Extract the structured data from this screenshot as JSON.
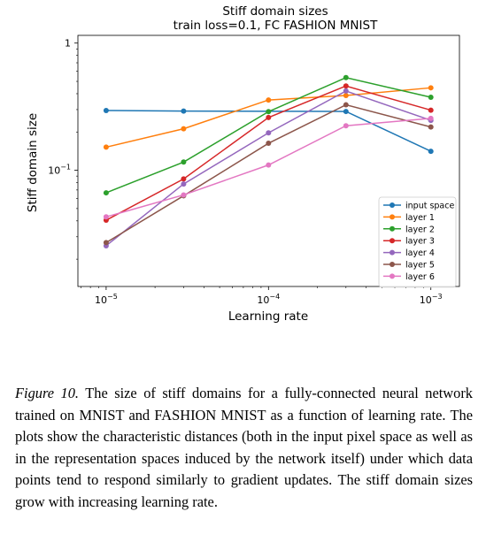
{
  "chart_data": {
    "type": "line",
    "title": "Stiff domain sizes",
    "subtitle": "train loss=0.1, FC FASHION MNIST",
    "xlabel": "Learning rate",
    "ylabel": "Stiff domain size",
    "xscale": "log",
    "yscale": "log",
    "xlim": [
      6.7e-06,
      0.0015
    ],
    "ylim": [
      0.0122,
      1.15
    ],
    "x_ticks": [
      {
        "value": 1e-05,
        "base": "10",
        "exp": "−5"
      },
      {
        "value": 0.0001,
        "base": "10",
        "exp": "−4"
      },
      {
        "value": 0.001,
        "base": "10",
        "exp": "−3"
      }
    ],
    "y_ticks": [
      {
        "value": 1,
        "label": "1"
      },
      {
        "value": 0.1,
        "base": "10",
        "exp": "−1"
      }
    ],
    "legend_position": "lower right",
    "grid": false,
    "x": [
      1e-05,
      3e-05,
      0.0001,
      0.0003,
      0.001
    ],
    "series": [
      {
        "name": "input space",
        "color": "#1f77b4",
        "values": [
          0.295,
          0.292,
          null,
          0.29,
          0.141
        ]
      },
      {
        "name": "layer 1",
        "color": "#ff7f0e",
        "values": [
          0.152,
          0.212,
          0.357,
          0.387,
          0.445
        ]
      },
      {
        "name": "layer 2",
        "color": "#2ca02c",
        "values": [
          0.0665,
          0.116,
          0.289,
          0.535,
          0.375
        ]
      },
      {
        "name": "layer 3",
        "color": "#d62728",
        "values": [
          0.0405,
          0.0855,
          0.26,
          0.46,
          0.297
        ]
      },
      {
        "name": "layer 4",
        "color": "#9467bd",
        "values": [
          0.0255,
          0.078,
          0.197,
          0.42,
          0.247
        ]
      },
      {
        "name": "layer 5",
        "color": "#8c564b",
        "values": [
          0.027,
          0.063,
          0.163,
          0.327,
          0.219
        ]
      },
      {
        "name": "layer 6",
        "color": "#e377c2",
        "values": [
          0.043,
          0.064,
          0.11,
          0.224,
          0.256
        ]
      }
    ]
  },
  "caption": {
    "label": "Figure 10.",
    "text": " The size of stiff domains for a fully-connected neural network trained on MNIST and FASHION MNIST as a function of learning rate. The plots show the characteristic distances (both in the input pixel space as well as in the representation spaces induced by the network itself) under which data points tend to respond similarly to gradient updates. The stiff domain sizes grow with increasing learning rate."
  }
}
